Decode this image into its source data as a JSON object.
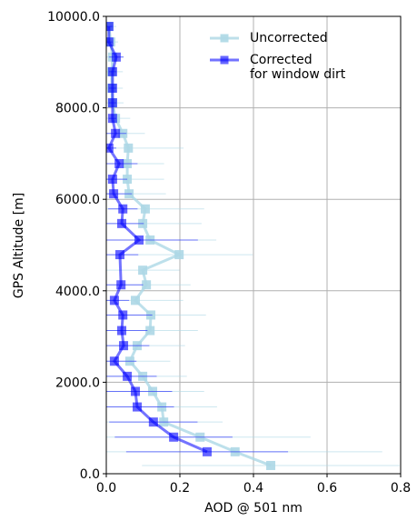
{
  "chart_data": {
    "type": "profile",
    "xlabel": "AOD @ 501 nm",
    "ylabel": "GPS Altitude [m]",
    "xlim": [
      0,
      0.8
    ],
    "ylim": [
      0,
      10000
    ],
    "xticks": [
      {
        "value": 0,
        "label": "0.0"
      },
      {
        "value": 0.2,
        "label": "0.2"
      },
      {
        "value": 0.4,
        "label": "0.4"
      },
      {
        "value": 0.6,
        "label": "0.6"
      },
      {
        "value": 0.8,
        "label": "0.8"
      }
    ],
    "yticks": [
      {
        "value": 0,
        "label": "0.0"
      },
      {
        "value": 2000,
        "label": "2000.0"
      },
      {
        "value": 4000,
        "label": "4000.0"
      },
      {
        "value": 6000,
        "label": "6000.0"
      },
      {
        "value": 8000,
        "label": "8000.0"
      },
      {
        "value": 10000,
        "label": "10000.0"
      }
    ],
    "grid": true,
    "legend": "upper right",
    "series": [
      {
        "name": "Uncorrected",
        "color": "#add8e6",
        "y": [
          9780,
          9440,
          9110,
          8790,
          8430,
          8110,
          7770,
          7440,
          7120,
          6780,
          6440,
          6120,
          5790,
          5470,
          5110,
          4790,
          4450,
          4130,
          3790,
          3470,
          3130,
          2800,
          2460,
          2130,
          1800,
          1460,
          1130,
          800,
          480,
          180
        ],
        "x": [
          0.007,
          0.012,
          0.017,
          0.015,
          0.015,
          0.017,
          0.025,
          0.045,
          0.06,
          0.057,
          0.057,
          0.062,
          0.106,
          0.099,
          0.119,
          0.198,
          0.099,
          0.109,
          0.079,
          0.121,
          0.119,
          0.084,
          0.064,
          0.099,
          0.126,
          0.151,
          0.156,
          0.255,
          0.35,
          0.447
        ],
        "xerr": [
          0.02,
          0.02,
          0.03,
          0.03,
          0.03,
          0.03,
          0.04,
          0.06,
          0.15,
          0.1,
          0.1,
          0.1,
          0.16,
          0.16,
          0.18,
          0.2,
          0.1,
          0.12,
          0.13,
          0.15,
          0.13,
          0.13,
          0.11,
          0.12,
          0.14,
          0.15,
          0.16,
          0.3,
          0.4,
          0.35
        ]
      },
      {
        "name": "Corrected\nfor window dirt",
        "color": "#0000ff",
        "y": [
          9780,
          9440,
          9110,
          8790,
          8430,
          8110,
          7770,
          7440,
          7120,
          6780,
          6440,
          6120,
          5790,
          5470,
          5110,
          4790,
          4130,
          3790,
          3470,
          3130,
          2800,
          2460,
          2130,
          1800,
          1460,
          1130,
          800,
          480
        ],
        "x": [
          0.007,
          0.007,
          0.027,
          0.017,
          0.017,
          0.017,
          0.017,
          0.025,
          0.007,
          0.035,
          0.017,
          0.02,
          0.045,
          0.042,
          0.089,
          0.037,
          0.04,
          0.022,
          0.045,
          0.042,
          0.047,
          0.022,
          0.057,
          0.079,
          0.084,
          0.128,
          0.183,
          0.274
        ],
        "xerr": [
          0.01,
          0.01,
          0.02,
          0.01,
          0.01,
          0.01,
          0.01,
          0.03,
          0.02,
          0.05,
          0.04,
          0.05,
          0.04,
          0.06,
          0.16,
          0.05,
          0.06,
          0.04,
          0.08,
          0.07,
          0.07,
          0.06,
          0.08,
          0.1,
          0.1,
          0.12,
          0.16,
          0.22
        ]
      }
    ]
  }
}
